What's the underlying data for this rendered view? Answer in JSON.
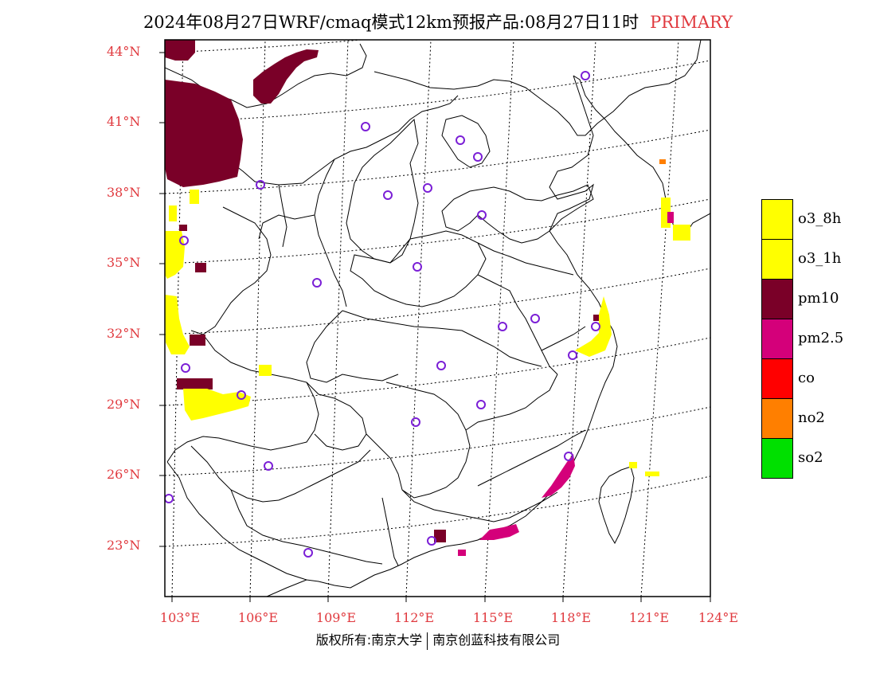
{
  "title": {
    "main": "2024年08月27日WRF/cmaq模式12km预报产品:08月27日11时",
    "tag": "PRIMARY"
  },
  "footer": {
    "left": "版权所有:南京大学",
    "right": "南京创蓝科技有限公司"
  },
  "axes": {
    "lat_labels": [
      "44°N",
      "41°N",
      "38°N",
      "35°N",
      "32°N",
      "29°N",
      "26°N",
      "23°N"
    ],
    "lon_labels": [
      "103°E",
      "106°E",
      "109°E",
      "112°E",
      "115°E",
      "118°E",
      "121°E",
      "124°E"
    ]
  },
  "legend": {
    "items": [
      {
        "label": "o3_8h",
        "color": "#ffff00"
      },
      {
        "label": "o3_1h",
        "color": "#ffff00"
      },
      {
        "label": "pm10",
        "color": "#7a0028"
      },
      {
        "label": "pm2.5",
        "color": "#d4007a"
      },
      {
        "label": "co",
        "color": "#ff0000"
      },
      {
        "label": "no2",
        "color": "#ff7f00"
      },
      {
        "label": "so2",
        "color": "#00e000"
      }
    ]
  },
  "colors": {
    "pm10": "#7a0028",
    "pm25": "#d4007a",
    "o3": "#ffff00",
    "no2": "#ff7f00",
    "station": "#7b1fd6",
    "tick_text": "#e0393e"
  }
}
